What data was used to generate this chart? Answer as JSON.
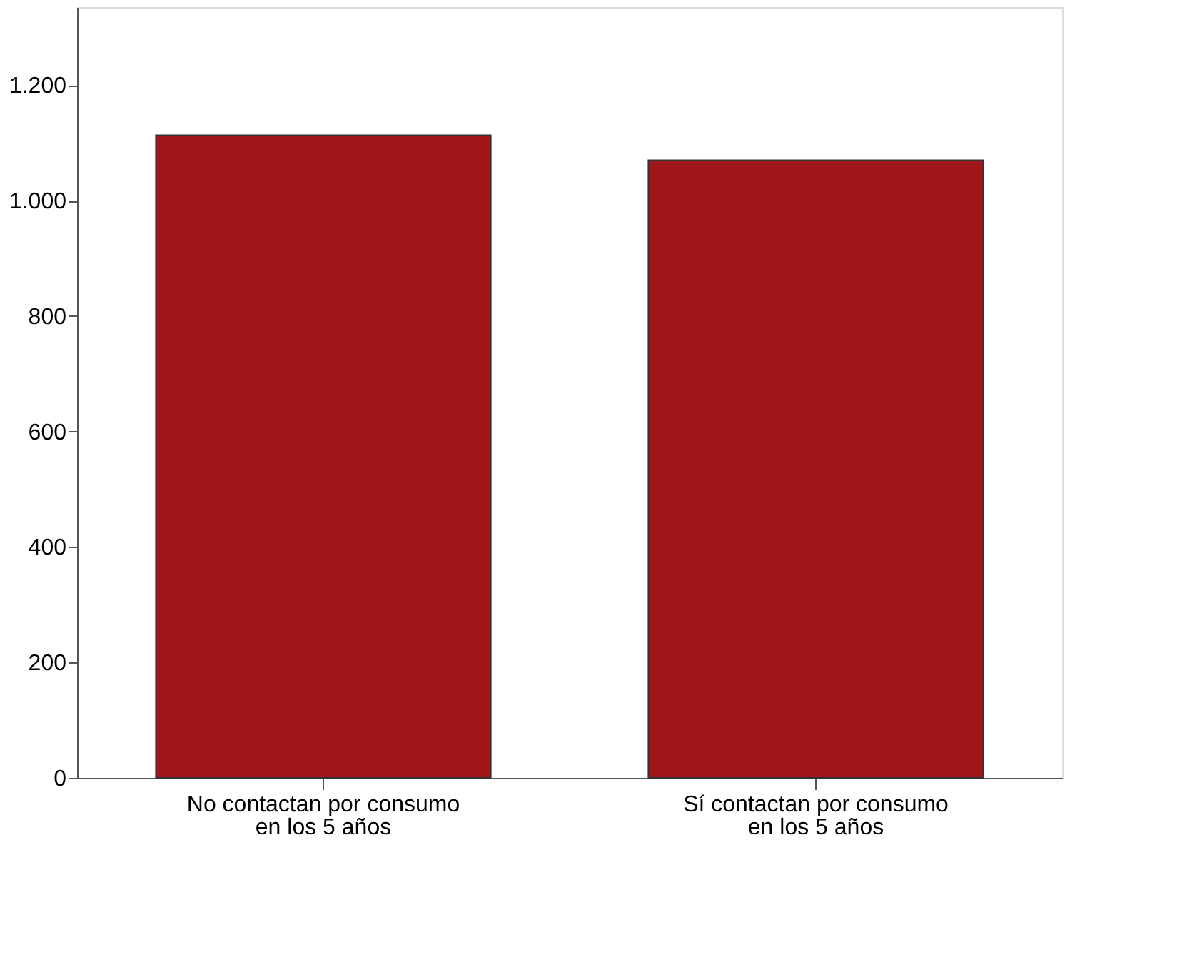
{
  "chart_data": {
    "type": "bar",
    "categories": [
      "No contactan por consumo en los 5 años",
      "Sí contactan por consumo en los 5 años"
    ],
    "values": [
      1113,
      1070
    ],
    "color": "#a0161a",
    "ylim": [
      0,
      1335
    ],
    "yticks": [
      {
        "value": 0,
        "label": "0"
      },
      {
        "value": 200,
        "label": "200"
      },
      {
        "value": 400,
        "label": "400"
      },
      {
        "value": 600,
        "label": "600"
      },
      {
        "value": 800,
        "label": "800"
      },
      {
        "value": 1000,
        "label": "1.000"
      },
      {
        "value": 1200,
        "label": "1.200"
      }
    ],
    "grid": false
  }
}
